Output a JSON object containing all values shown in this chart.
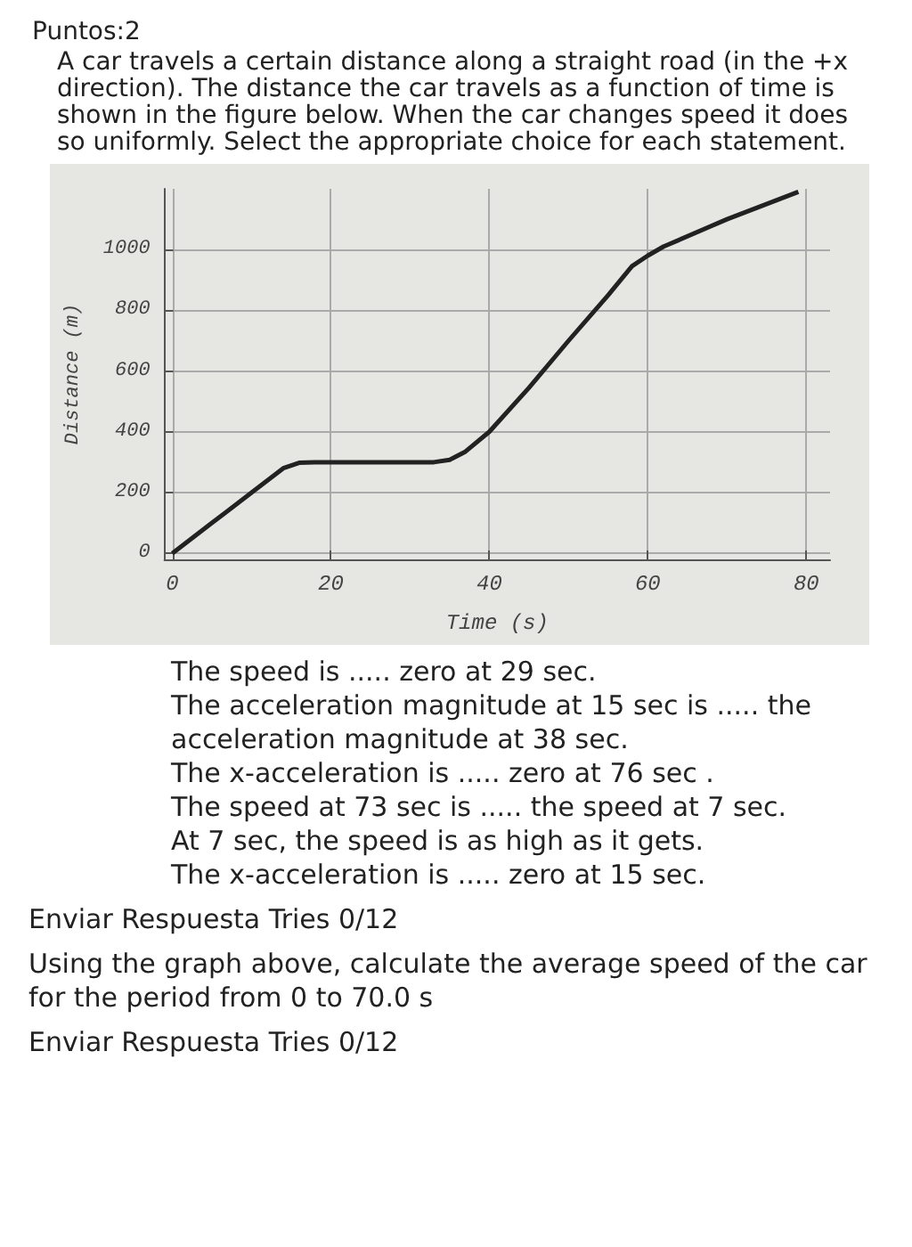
{
  "chart_data": {
    "type": "line",
    "title": "Puntos:2",
    "subtitle": "A car travels a certain distance along a straight road (in the +x direction). The distance the car travels as a function of time is shown in the figure below. When the car changes speed it does so uniformly. Select the appropriate choice for each statement.",
    "xlabel": "Time (s)",
    "ylabel": "Distance (m)",
    "x": [
      0,
      5,
      10,
      14,
      16,
      18,
      25,
      33,
      35,
      37,
      40,
      45,
      50,
      55,
      58,
      60,
      62,
      70,
      79
    ],
    "series": [
      {
        "color": "#222222",
        "values": [
          0,
          100,
          200,
          280,
          298,
          300,
          300,
          300,
          308,
          335,
          400,
          545,
          700,
          850,
          945,
          980,
          1010,
          1100,
          1190
        ]
      }
    ],
    "xlim": [
      -1,
      83
    ],
    "ylim": [
      -20,
      1200
    ],
    "xticks": [
      0,
      20,
      40,
      60,
      80
    ],
    "yticks": [
      0,
      200,
      400,
      600,
      800,
      1000
    ],
    "grid": true,
    "marker": "none",
    "line_style": "solid",
    "annotations": [
      "The speed is ..... zero at 29 sec.",
      "The acceleration magnitude at 15 sec is ..... the acceleration magnitude at 38 sec.",
      "The x-acceleration is ..... zero at 76 sec .",
      "The speed at 73 sec is ..... the speed at 7 sec.",
      "At 7 sec, the speed is as high as it gets.",
      "The x-acceleration is ..... zero at 15 sec.",
      "Enviar Respuesta Tries 0/12",
      "Using the graph above, calculate the average speed of the car for the period from 0 to 70.0 s",
      "Enviar Respuesta Tries 0/12"
    ]
  }
}
